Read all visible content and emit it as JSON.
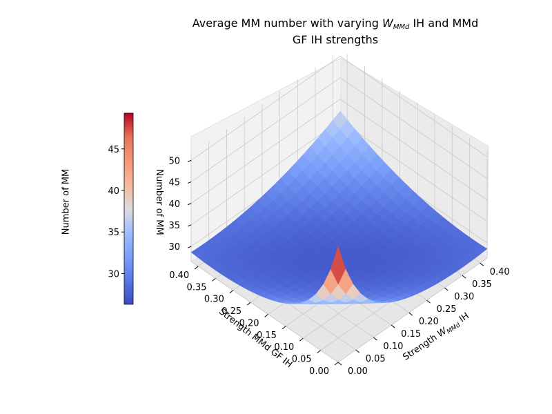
{
  "chart_data": {
    "type": "surface",
    "title_prefix": "Average MM number with varying ",
    "title_symbol": "W",
    "title_symbol_sub": "MMd",
    "title_mid": " IH and MMd",
    "title_line2": "GF IH strengths",
    "xlabel_prefix": "Strength ",
    "xlabel_symbol": "W",
    "xlabel_symbol_sub": "MMd",
    "xlabel_suffix": " IH",
    "ylabel": "Strength MMd GF IH",
    "zlabel": "Number of MM",
    "colorbar_label": "Number of MM",
    "x_ticks": [
      "0.00",
      "0.05",
      "0.10",
      "0.15",
      "0.20",
      "0.25",
      "0.30",
      "0.35",
      "0.40"
    ],
    "y_ticks": [
      "0.00",
      "0.05",
      "0.10",
      "0.15",
      "0.20",
      "0.25",
      "0.30",
      "0.35",
      "0.40"
    ],
    "z_ticks": [
      "30",
      "35",
      "40",
      "45",
      "50"
    ],
    "colorbar_ticks": [
      "30",
      "35",
      "40",
      "45"
    ],
    "colormap": "coolwarm",
    "xlim": [
      0,
      0.42
    ],
    "ylim": [
      0,
      0.42
    ],
    "zlim": [
      26.5,
      51.5
    ],
    "clim": [
      26.3,
      49.3
    ],
    "grid": true,
    "surface_samples": [
      {
        "x": 0.0,
        "y": 0.0,
        "z": 49.3
      },
      {
        "x": 0.42,
        "y": 0.42,
        "z": 40.5
      },
      {
        "x": 0.2,
        "y": 0.2,
        "z": 27.5
      },
      {
        "x": 0.42,
        "y": 0.0,
        "z": 34.0
      },
      {
        "x": 0.0,
        "y": 0.42,
        "z": 34.0
      }
    ]
  }
}
